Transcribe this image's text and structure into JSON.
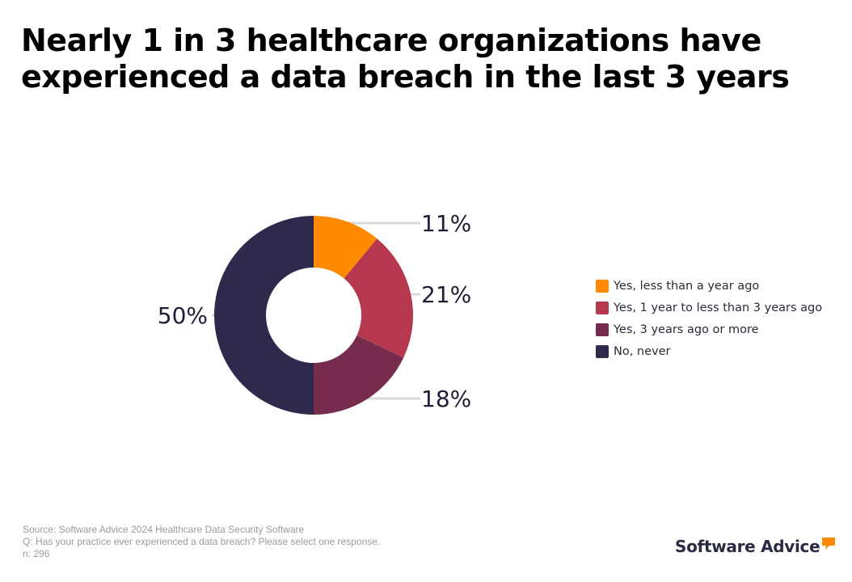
{
  "title": {
    "line1": "Nearly 1 in 3 healthcare organizations have",
    "line2": "experienced a data breach in the last 3 years"
  },
  "chart_data": {
    "type": "pie",
    "variant": "donut",
    "slices": [
      {
        "label": "Yes, less than a year ago",
        "value": 11,
        "display": "11%",
        "color": "#ff8a00"
      },
      {
        "label": "Yes, 1 year to less than 3 years ago",
        "value": 21,
        "display": "21%",
        "color": "#b5384f"
      },
      {
        "label": "Yes, 3 years ago or more",
        "value": 18,
        "display": "18%",
        "color": "#772c4e"
      },
      {
        "label": "No, never",
        "value": 50,
        "display": "50%",
        "color": "#2e2a4c"
      }
    ],
    "legend_position": "right"
  },
  "footnote": {
    "source": "Source: Software Advice 2024 Healthcare Data Security Software",
    "question": "Q: Has your practice ever experienced a data breach? Please select one response.",
    "sample": "n: 296"
  },
  "brand": {
    "name": "Software Advice",
    "mark_icon": "speech-bubble-icon",
    "mark_color": "#ff8a00"
  }
}
